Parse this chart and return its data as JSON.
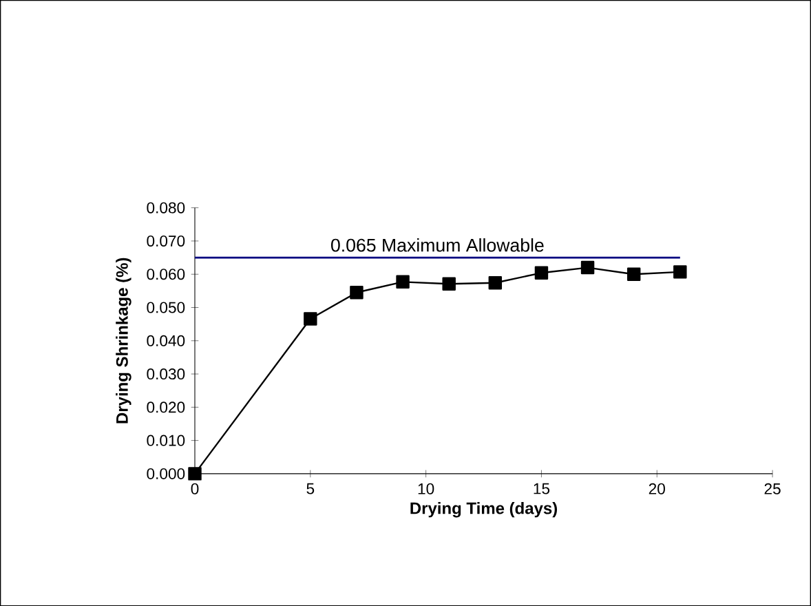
{
  "chart_data": {
    "type": "line",
    "xlabel": "Drying Time (days)",
    "ylabel": "Drying Shrinkage (%)",
    "x": [
      0,
      5,
      7,
      9,
      11,
      13,
      15,
      17,
      19,
      21
    ],
    "series": [
      {
        "color": "#000000",
        "values": [
          0.0,
          0.0466,
          0.0545,
          0.0577,
          0.0571,
          0.0574,
          0.0604,
          0.062,
          0.06,
          0.0607
        ]
      }
    ],
    "xlim": [
      0,
      25
    ],
    "xticks": [
      0,
      5,
      10,
      15,
      20,
      25
    ],
    "ylim": [
      0,
      0.08
    ],
    "yticks": [
      {
        "value": 0,
        "label": "0.000"
      },
      {
        "value": 0.01,
        "label": "0.010"
      },
      {
        "value": 0.02,
        "label": "0.020"
      },
      {
        "value": 0.03,
        "label": "0.030"
      },
      {
        "value": 0.04,
        "label": "0.040"
      },
      {
        "value": 0.05,
        "label": "0.050"
      },
      {
        "value": 0.06,
        "label": "0.060"
      },
      {
        "value": 0.07,
        "label": "0.070"
      },
      {
        "value": 0.08,
        "label": "0.080"
      }
    ],
    "ref_lines": [
      {
        "axis": "y",
        "value": 0.065,
        "label": "0.065 Maximum Allowable",
        "color": "#000080"
      }
    ],
    "marker": "square",
    "line_style": "solid",
    "grid": false
  }
}
